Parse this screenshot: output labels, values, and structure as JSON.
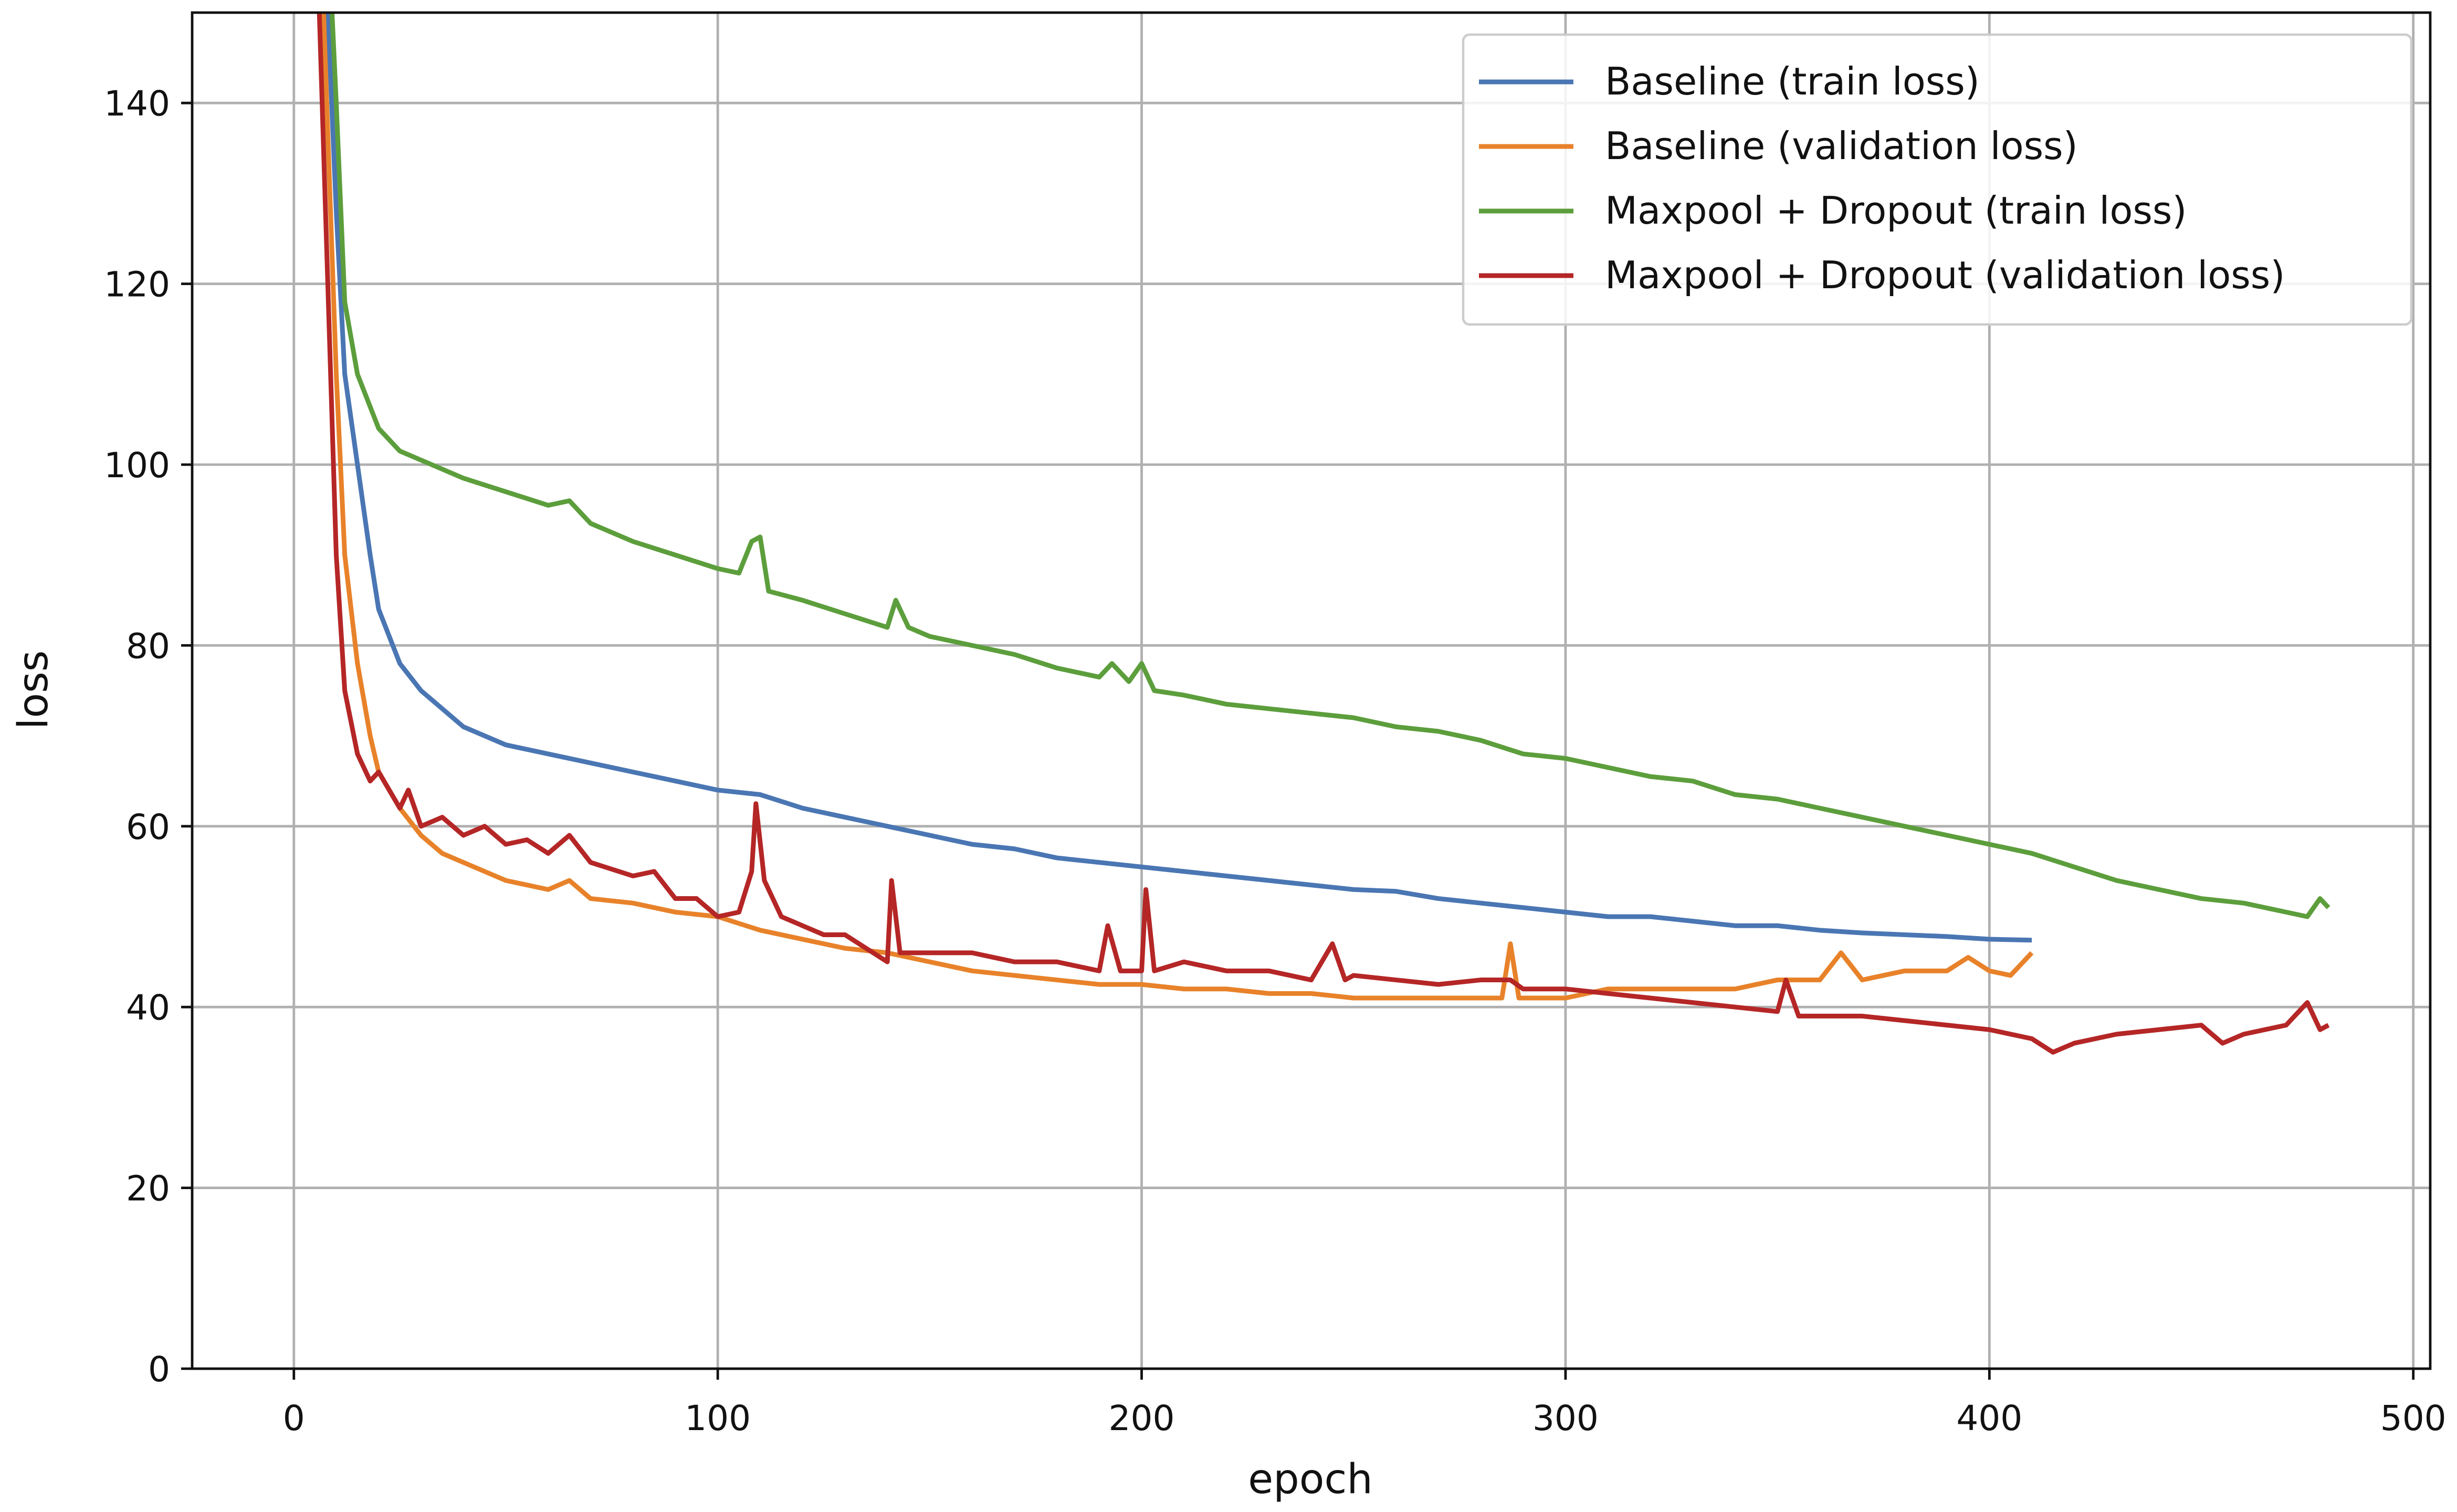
{
  "chart_data": {
    "type": "line",
    "xlabel": "epoch",
    "ylabel": "loss",
    "xlim": [
      -24,
      504
    ],
    "xticks": [
      0,
      100,
      200,
      300,
      400,
      500
    ],
    "ylim": [
      0,
      150
    ],
    "yticks": [
      0,
      20,
      40,
      60,
      80,
      100,
      120,
      140
    ],
    "grid": true,
    "legend": "upper right",
    "series": [
      {
        "name": "Baseline (train loss)",
        "color": "#4a76b3",
        "x": [
          8,
          10,
          12,
          15,
          18,
          20,
          25,
          30,
          40,
          50,
          60,
          70,
          80,
          90,
          100,
          110,
          120,
          130,
          140,
          150,
          160,
          170,
          180,
          190,
          200,
          210,
          220,
          230,
          240,
          250,
          260,
          270,
          280,
          290,
          300,
          310,
          320,
          330,
          340,
          350,
          360,
          370,
          380,
          390,
          400,
          410
        ],
        "values": [
          150,
          128,
          110,
          100,
          90,
          84,
          78,
          75,
          71,
          69,
          68,
          67,
          66,
          65,
          64,
          63.5,
          62,
          61,
          60,
          59,
          58,
          57.5,
          56.5,
          56,
          55.5,
          55,
          54.5,
          54,
          53.5,
          53,
          52.8,
          52,
          51.5,
          51,
          50.5,
          50,
          50,
          49.5,
          49,
          49,
          48.5,
          48.2,
          48,
          47.8,
          47.5,
          47.4
        ]
      },
      {
        "name": "Baseline (validation loss)",
        "color": "#e8822a",
        "x": [
          7,
          10,
          12,
          15,
          18,
          20,
          25,
          30,
          35,
          40,
          50,
          60,
          65,
          70,
          80,
          90,
          100,
          110,
          120,
          130,
          140,
          150,
          160,
          170,
          180,
          190,
          200,
          210,
          220,
          230,
          240,
          250,
          260,
          270,
          280,
          285,
          287,
          289,
          300,
          310,
          320,
          330,
          340,
          350,
          360,
          365,
          370,
          380,
          390,
          395,
          400,
          405,
          410
        ],
        "values": [
          150,
          110,
          90,
          78,
          70,
          66,
          62,
          59,
          57,
          56,
          54,
          53,
          54,
          52,
          51.5,
          50.5,
          50,
          48.5,
          47.5,
          46.5,
          46,
          45,
          44,
          43.5,
          43,
          42.5,
          42.5,
          42,
          42,
          41.5,
          41.5,
          41,
          41,
          41,
          41,
          41,
          47,
          41,
          41,
          42,
          42,
          42,
          42,
          43,
          43,
          46,
          43,
          44,
          44,
          45.5,
          44,
          43.5,
          46
        ]
      },
      {
        "name": "Maxpool + Dropout (train loss)",
        "color": "#5c9e3c",
        "x": [
          9,
          10,
          12,
          15,
          20,
          25,
          30,
          40,
          50,
          60,
          65,
          70,
          80,
          90,
          100,
          105,
          108,
          110,
          112,
          120,
          130,
          140,
          142,
          145,
          150,
          160,
          170,
          180,
          190,
          193,
          197,
          200,
          203,
          210,
          220,
          230,
          240,
          250,
          260,
          270,
          280,
          290,
          300,
          310,
          320,
          330,
          340,
          350,
          360,
          370,
          380,
          390,
          400,
          410,
          420,
          430,
          440,
          450,
          460,
          470,
          475,
          478,
          480
        ],
        "values": [
          150,
          140,
          118,
          110,
          104,
          101.5,
          100.5,
          98.5,
          97,
          95.5,
          96,
          93.5,
          91.5,
          90,
          88.5,
          88,
          91.5,
          92,
          86,
          85,
          83.5,
          82,
          85,
          82,
          81,
          80,
          79,
          77.5,
          76.5,
          78,
          76,
          78,
          75,
          74.5,
          73.5,
          73,
          72.5,
          72,
          71,
          70.5,
          69.5,
          68,
          67.5,
          66.5,
          65.5,
          65,
          63.5,
          63,
          62,
          61,
          60,
          59,
          58,
          57,
          55.5,
          54,
          53,
          52,
          51.5,
          50.5,
          50,
          52,
          51
        ]
      },
      {
        "name": "Maxpool + Dropout (validation loss)",
        "color": "#b52626",
        "x": [
          6,
          8,
          10,
          12,
          15,
          18,
          20,
          25,
          27,
          30,
          35,
          40,
          45,
          50,
          55,
          60,
          65,
          70,
          80,
          85,
          90,
          95,
          100,
          105,
          108,
          109,
          111,
          115,
          120,
          125,
          130,
          135,
          140,
          141,
          143,
          150,
          160,
          170,
          180,
          190,
          192,
          195,
          200,
          201,
          203,
          210,
          220,
          230,
          240,
          245,
          248,
          250,
          260,
          270,
          280,
          287,
          290,
          300,
          310,
          320,
          330,
          340,
          350,
          352,
          355,
          360,
          370,
          380,
          390,
          400,
          410,
          415,
          420,
          430,
          440,
          450,
          455,
          460,
          470,
          475,
          478,
          480
        ],
        "values": [
          150,
          120,
          90,
          75,
          68,
          65,
          66,
          62,
          64,
          60,
          61,
          59,
          60,
          58,
          58.5,
          57,
          59,
          56,
          54.5,
          55,
          52,
          52,
          50,
          50.5,
          55,
          62.5,
          54,
          50,
          49,
          48,
          48,
          46.5,
          45,
          54,
          46,
          46,
          46,
          45,
          45,
          44,
          49,
          44,
          44,
          53,
          44,
          45,
          44,
          44,
          43,
          47,
          43,
          43.5,
          43,
          42.5,
          43,
          43,
          42,
          42,
          41.5,
          41,
          40.5,
          40,
          39.5,
          43,
          39,
          39,
          39,
          38.5,
          38,
          37.5,
          36.5,
          35,
          36,
          37,
          37.5,
          38,
          36,
          37,
          38,
          40.5,
          37.5,
          38
        ]
      }
    ]
  }
}
